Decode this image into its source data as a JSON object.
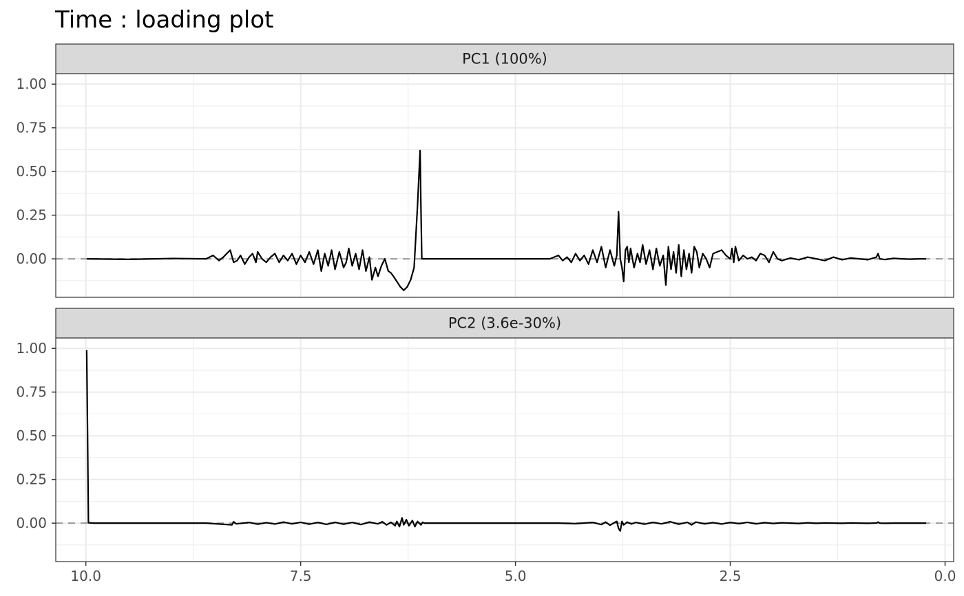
{
  "chart_data": {
    "type": "line",
    "title": "Time : loading plot",
    "xlabel": "",
    "ylabel": "",
    "x_reversed": true,
    "xlim": [
      10.35,
      -0.1
    ],
    "ylim": [
      -0.22,
      1.06
    ],
    "x_ticks": [
      10.0,
      7.5,
      5.0,
      2.5,
      0.0
    ],
    "x_tick_labels": [
      "10.0",
      "7.5",
      "5.0",
      "2.5",
      "0.0"
    ],
    "y_ticks": [
      0.0,
      0.25,
      0.5,
      0.75,
      1.0
    ],
    "y_tick_labels": [
      "0.00",
      "0.25",
      "0.50",
      "0.75",
      "1.00"
    ],
    "grid": true,
    "reference_line": {
      "y": 0,
      "style": "dashed",
      "color": "#999999"
    },
    "colors": {
      "line": "#000000",
      "strip_fill": "#d9d9d9",
      "grid": "#ebebeb",
      "panel_border": "#333333"
    },
    "panels": [
      {
        "strip_label": "PC1 (100%)",
        "x": [
          9.99,
          9.5,
          9.0,
          8.6,
          8.52,
          8.45,
          8.4,
          8.32,
          8.28,
          8.24,
          8.2,
          8.15,
          8.1,
          8.06,
          8.02,
          8.0,
          7.95,
          7.9,
          7.85,
          7.8,
          7.75,
          7.7,
          7.65,
          7.6,
          7.55,
          7.5,
          7.45,
          7.4,
          7.35,
          7.3,
          7.26,
          7.22,
          7.18,
          7.14,
          7.1,
          7.05,
          7.0,
          6.97,
          6.94,
          6.9,
          6.86,
          6.82,
          6.78,
          6.74,
          6.7,
          6.67,
          6.63,
          6.6,
          6.56,
          6.52,
          6.48,
          6.45,
          6.42,
          6.38,
          6.34,
          6.3,
          6.26,
          6.22,
          6.18,
          6.14,
          6.11,
          6.1,
          6.09,
          6.08,
          6.06,
          5.5,
          5.0,
          4.6,
          4.5,
          4.45,
          4.4,
          4.35,
          4.3,
          4.25,
          4.2,
          4.15,
          4.1,
          4.05,
          4.0,
          3.95,
          3.9,
          3.85,
          3.82,
          3.8,
          3.78,
          3.76,
          3.74,
          3.72,
          3.7,
          3.68,
          3.66,
          3.62,
          3.58,
          3.55,
          3.52,
          3.48,
          3.44,
          3.4,
          3.36,
          3.32,
          3.28,
          3.25,
          3.22,
          3.19,
          3.16,
          3.13,
          3.1,
          3.07,
          3.04,
          3.01,
          2.98,
          2.95,
          2.92,
          2.89,
          2.86,
          2.82,
          2.78,
          2.74,
          2.7,
          2.6,
          2.55,
          2.5,
          2.48,
          2.46,
          2.44,
          2.42,
          2.4,
          2.35,
          2.3,
          2.25,
          2.2,
          2.15,
          2.1,
          2.05,
          2.0,
          1.95,
          1.9,
          1.8,
          1.7,
          1.6,
          1.5,
          1.4,
          1.3,
          1.2,
          1.1,
          1.0,
          0.9,
          0.8,
          0.78,
          0.76,
          0.7,
          0.6,
          0.5,
          0.4,
          0.3,
          0.22
        ],
        "y": [
          0.0,
          -0.003,
          0.002,
          0.0,
          0.02,
          -0.01,
          0.01,
          0.05,
          -0.02,
          -0.01,
          0.02,
          -0.03,
          0.01,
          0.03,
          -0.02,
          0.04,
          0.0,
          -0.02,
          0.01,
          0.03,
          -0.02,
          0.02,
          -0.01,
          0.03,
          -0.03,
          0.02,
          -0.02,
          0.04,
          -0.03,
          0.05,
          -0.07,
          0.03,
          -0.04,
          0.05,
          -0.06,
          0.04,
          -0.05,
          -0.02,
          0.06,
          -0.04,
          0.03,
          -0.06,
          0.05,
          -0.07,
          0.01,
          -0.12,
          -0.05,
          -0.1,
          -0.04,
          0.0,
          -0.07,
          -0.08,
          -0.1,
          -0.13,
          -0.16,
          -0.18,
          -0.16,
          -0.12,
          -0.05,
          0.3,
          0.62,
          0.3,
          0.0,
          0.0,
          0.0,
          0.0,
          0.0,
          0.0,
          0.02,
          -0.01,
          0.01,
          -0.02,
          0.03,
          -0.01,
          0.02,
          -0.03,
          0.05,
          -0.02,
          0.07,
          -0.05,
          0.05,
          -0.04,
          0.02,
          0.27,
          0.0,
          -0.05,
          -0.13,
          0.05,
          0.07,
          -0.02,
          0.06,
          -0.05,
          0.03,
          -0.02,
          0.08,
          -0.03,
          0.05,
          -0.06,
          0.06,
          -0.04,
          0.02,
          -0.15,
          0.07,
          -0.06,
          0.04,
          -0.08,
          0.08,
          -0.1,
          0.05,
          -0.06,
          0.03,
          -0.08,
          0.07,
          0.04,
          -0.05,
          0.03,
          0.0,
          -0.05,
          0.03,
          0.05,
          0.02,
          0.0,
          0.06,
          -0.02,
          0.07,
          0.03,
          -0.01,
          0.02,
          0.0,
          0.01,
          -0.01,
          0.03,
          0.02,
          -0.02,
          0.04,
          0.0,
          -0.01,
          0.005,
          -0.005,
          0.01,
          0.0,
          -0.01,
          0.01,
          -0.005,
          0.005,
          0.0,
          -0.005,
          0.01,
          0.03,
          0.0,
          -0.004,
          0.003,
          0.0,
          -0.002,
          0.0,
          0.0
        ]
      },
      {
        "strip_label": "PC2 (3.6e-30%)",
        "x": [
          9.99,
          9.98,
          9.97,
          9.9,
          9.5,
          9.0,
          8.6,
          8.3,
          8.28,
          8.25,
          8.1,
          8.0,
          7.9,
          7.8,
          7.7,
          7.6,
          7.5,
          7.4,
          7.3,
          7.2,
          7.1,
          7.0,
          6.9,
          6.8,
          6.7,
          6.6,
          6.55,
          6.5,
          6.45,
          6.4,
          6.38,
          6.35,
          6.32,
          6.3,
          6.27,
          6.24,
          6.2,
          6.17,
          6.14,
          6.1,
          6.08,
          6.06,
          5.5,
          5.0,
          4.5,
          4.3,
          4.1,
          4.0,
          3.95,
          3.9,
          3.85,
          3.82,
          3.8,
          3.78,
          3.76,
          3.74,
          3.7,
          3.65,
          3.6,
          3.5,
          3.4,
          3.3,
          3.2,
          3.1,
          3.0,
          2.95,
          2.9,
          2.8,
          2.7,
          2.6,
          2.5,
          2.4,
          2.3,
          2.2,
          2.1,
          2.0,
          1.9,
          1.8,
          1.7,
          1.6,
          1.5,
          1.4,
          1.3,
          1.2,
          1.1,
          1.0,
          0.9,
          0.8,
          0.78,
          0.76,
          0.7,
          0.6,
          0.5,
          0.4,
          0.3,
          0.22
        ],
        "y": [
          0.99,
          0.5,
          0.002,
          0.0,
          0.0,
          0.0,
          0.0,
          -0.01,
          0.008,
          -0.004,
          0.004,
          -0.006,
          0.003,
          -0.005,
          0.006,
          -0.004,
          0.005,
          -0.006,
          0.004,
          -0.007,
          0.005,
          -0.006,
          0.004,
          -0.008,
          0.006,
          -0.004,
          0.008,
          -0.01,
          0.005,
          -0.015,
          0.01,
          -0.02,
          0.03,
          -0.01,
          0.02,
          -0.015,
          0.015,
          -0.02,
          0.01,
          -0.01,
          0.005,
          0.0,
          0.0,
          0.0,
          0.0,
          -0.003,
          0.004,
          -0.008,
          0.006,
          -0.012,
          0.003,
          0.01,
          -0.03,
          -0.045,
          0.01,
          -0.01,
          0.006,
          -0.005,
          0.004,
          -0.006,
          0.005,
          -0.004,
          0.008,
          -0.006,
          0.005,
          -0.01,
          0.006,
          -0.004,
          0.003,
          -0.005,
          0.004,
          -0.003,
          0.005,
          -0.004,
          0.003,
          -0.002,
          0.002,
          0.0,
          -0.002,
          0.002,
          -0.001,
          0.001,
          0.0,
          -0.001,
          0.001,
          0.0,
          -0.001,
          0.001,
          0.006,
          0.0,
          -0.001,
          0.0,
          0.0,
          0.0,
          0.0,
          0.0
        ]
      }
    ]
  }
}
